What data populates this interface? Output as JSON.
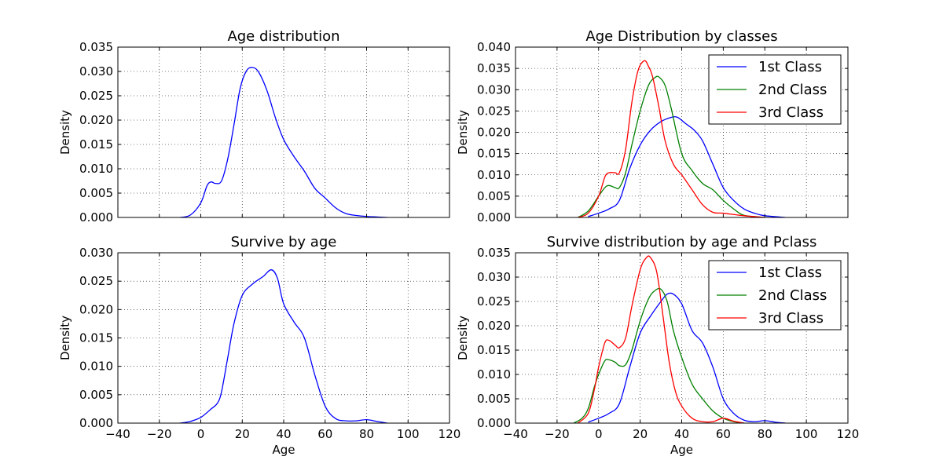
{
  "chart_data": [
    {
      "type": "line",
      "title": "Age distribution",
      "xlabel": "",
      "ylabel": "Density",
      "xlim": [
        -40,
        120
      ],
      "ylim": [
        0,
        0.035
      ],
      "xticks": [],
      "yticks": [
        "0.000",
        "0.005",
        "0.010",
        "0.015",
        "0.020",
        "0.025",
        "0.030",
        "0.035"
      ],
      "grid": true,
      "legend": null,
      "series": [
        {
          "color": "#0000ff",
          "x": [
            -10,
            -5,
            0,
            3,
            5,
            7,
            10,
            13,
            16,
            19,
            22,
            25,
            28,
            32,
            36,
            40,
            45,
            50,
            55,
            60,
            65,
            70,
            75,
            80,
            85,
            90
          ],
          "y": [
            0,
            0.0005,
            0.003,
            0.0065,
            0.0073,
            0.007,
            0.0075,
            0.012,
            0.019,
            0.0265,
            0.0301,
            0.0308,
            0.0298,
            0.026,
            0.0205,
            0.016,
            0.0125,
            0.0095,
            0.006,
            0.004,
            0.002,
            0.0008,
            0.0004,
            0.0002,
            0.0001,
            0
          ]
        }
      ]
    },
    {
      "type": "line",
      "title": "Age Distribution by classes",
      "xlabel": "",
      "ylabel": "Density",
      "xlim": [
        -40,
        120
      ],
      "ylim": [
        0,
        0.04
      ],
      "xticks": [],
      "yticks": [
        "0.000",
        "0.005",
        "0.010",
        "0.015",
        "0.020",
        "0.025",
        "0.030",
        "0.035",
        "0.040"
      ],
      "grid": true,
      "legend": "top-right",
      "series": [
        {
          "name": "1st Class",
          "color": "#0000ff",
          "x": [
            -5,
            0,
            5,
            10,
            15,
            20,
            25,
            30,
            35,
            38,
            42,
            46,
            50,
            55,
            60,
            65,
            70,
            75,
            80,
            90
          ],
          "y": [
            0.0002,
            0.001,
            0.002,
            0.004,
            0.0115,
            0.017,
            0.0205,
            0.0225,
            0.0235,
            0.0235,
            0.022,
            0.0205,
            0.018,
            0.0125,
            0.007,
            0.004,
            0.002,
            0.001,
            0.0004,
            0
          ]
        },
        {
          "name": "2nd Class",
          "color": "#008000",
          "x": [
            -10,
            -5,
            0,
            3,
            5,
            8,
            10,
            13,
            16,
            20,
            24,
            27,
            29,
            32,
            35,
            40,
            45,
            50,
            55,
            60,
            65,
            70,
            80
          ],
          "y": [
            0,
            0.0015,
            0.005,
            0.007,
            0.0075,
            0.007,
            0.007,
            0.0105,
            0.017,
            0.025,
            0.031,
            0.0328,
            0.033,
            0.031,
            0.0255,
            0.015,
            0.011,
            0.008,
            0.0065,
            0.004,
            0.002,
            0.0005,
            0
          ]
        },
        {
          "name": "3rd Class",
          "color": "#ff0000",
          "x": [
            -10,
            -5,
            0,
            3,
            5,
            8,
            10,
            13,
            16,
            19,
            22,
            24,
            26,
            29,
            32,
            36,
            40,
            45,
            50,
            55,
            60,
            70,
            80
          ],
          "y": [
            0,
            0.001,
            0.005,
            0.0095,
            0.0105,
            0.0105,
            0.0105,
            0.016,
            0.027,
            0.0345,
            0.0368,
            0.0355,
            0.033,
            0.026,
            0.018,
            0.0125,
            0.01,
            0.0065,
            0.003,
            0.0012,
            0.001,
            0.0004,
            0
          ]
        }
      ]
    },
    {
      "type": "line",
      "title": "Survive by age",
      "xlabel": "Age",
      "ylabel": "Density",
      "xlim": [
        -40,
        120
      ],
      "ylim": [
        0,
        0.03
      ],
      "xticks": [
        "−40",
        "−20",
        "0",
        "20",
        "40",
        "60",
        "80",
        "100",
        "120"
      ],
      "yticks": [
        "0.000",
        "0.005",
        "0.010",
        "0.015",
        "0.020",
        "0.025",
        "0.030"
      ],
      "grid": true,
      "legend": null,
      "series": [
        {
          "color": "#0000ff",
          "x": [
            -10,
            -5,
            0,
            5,
            8,
            10,
            13,
            16,
            20,
            25,
            30,
            34,
            37,
            40,
            45,
            50,
            55,
            60,
            65,
            70,
            75,
            80,
            85,
            90
          ],
          "y": [
            0,
            0.0003,
            0.001,
            0.0025,
            0.0035,
            0.0055,
            0.0115,
            0.0175,
            0.0225,
            0.0245,
            0.0258,
            0.027,
            0.0255,
            0.021,
            0.0178,
            0.015,
            0.0085,
            0.003,
            0.0008,
            0.0004,
            0.0004,
            0.0006,
            0.0003,
            0
          ]
        }
      ]
    },
    {
      "type": "line",
      "title": "Survive distribution by age and Pclass",
      "xlabel": "Age",
      "ylabel": "Density",
      "xlim": [
        -40,
        120
      ],
      "ylim": [
        0,
        0.035
      ],
      "xticks": [
        "−40",
        "−20",
        "0",
        "20",
        "40",
        "60",
        "80",
        "100",
        "120"
      ],
      "yticks": [
        "0.000",
        "0.005",
        "0.010",
        "0.015",
        "0.020",
        "0.025",
        "0.030",
        "0.035"
      ],
      "grid": true,
      "legend": "top-right",
      "series": [
        {
          "name": "1st Class",
          "color": "#0000ff",
          "x": [
            -5,
            0,
            5,
            10,
            15,
            20,
            25,
            30,
            33,
            36,
            40,
            45,
            50,
            55,
            60,
            65,
            70,
            75,
            80,
            85,
            90
          ],
          "y": [
            0.0002,
            0.001,
            0.002,
            0.004,
            0.0115,
            0.0185,
            0.022,
            0.025,
            0.0265,
            0.0265,
            0.0245,
            0.019,
            0.0165,
            0.0115,
            0.005,
            0.002,
            0.0006,
            0.0003,
            0.0005,
            0.0002,
            0
          ]
        },
        {
          "name": "2nd Class",
          "color": "#008000",
          "x": [
            -12,
            -8,
            -5,
            -2,
            0,
            3,
            5,
            8,
            10,
            13,
            16,
            20,
            24,
            27,
            30,
            33,
            36,
            40,
            45,
            50,
            55,
            60,
            65,
            70
          ],
          "y": [
            0,
            0.001,
            0.003,
            0.0075,
            0.01,
            0.0128,
            0.013,
            0.0125,
            0.0118,
            0.012,
            0.015,
            0.021,
            0.0255,
            0.0272,
            0.0275,
            0.025,
            0.019,
            0.0135,
            0.008,
            0.005,
            0.0025,
            0.001,
            0.0003,
            0
          ]
        },
        {
          "name": "3rd Class",
          "color": "#ff0000",
          "x": [
            -10,
            -5,
            -2,
            0,
            3,
            5,
            8,
            10,
            13,
            16,
            20,
            23,
            25,
            28,
            31,
            34,
            37,
            40,
            45,
            50,
            55,
            60,
            65,
            70
          ],
          "y": [
            0,
            0.002,
            0.007,
            0.0115,
            0.0165,
            0.017,
            0.016,
            0.0155,
            0.0175,
            0.024,
            0.0315,
            0.034,
            0.034,
            0.031,
            0.022,
            0.0125,
            0.0065,
            0.0035,
            0.001,
            0.0003,
            0.0003,
            0.001,
            0.0004,
            0
          ]
        }
      ]
    }
  ]
}
